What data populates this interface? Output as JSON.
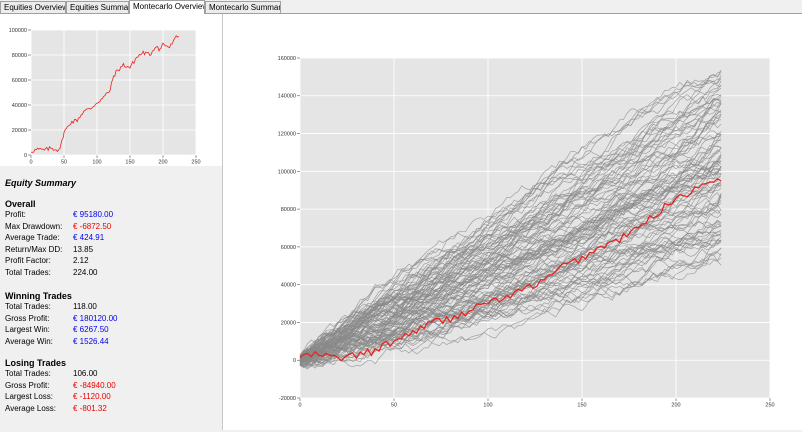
{
  "tabs": [
    {
      "label": "Equities Overview",
      "active": false
    },
    {
      "label": "Equities Summary",
      "active": false
    },
    {
      "label": "Montecarlo Overview",
      "active": true
    },
    {
      "label": "Montecarlo Summary",
      "active": false
    }
  ],
  "colors": {
    "equity_line": "#e8231f",
    "simulation_lines": "#8a8a8a",
    "plot_background": "#e5e5e5",
    "positive_value": "#0000ee",
    "negative_value": "#ee0000"
  },
  "summary": {
    "title": "Equity Summary",
    "overall": {
      "heading": "Overall",
      "rows": [
        {
          "label": "Profit:",
          "value": "€ 95180.00",
          "tone": "blue"
        },
        {
          "label": "Max Drawdown:",
          "value": "€ -6872.50",
          "tone": "red"
        },
        {
          "label": "Average Trade:",
          "value": "€ 424.91",
          "tone": "blue"
        },
        {
          "label": "Return/Max DD:",
          "value": "13.85",
          "tone": "black"
        },
        {
          "label": "Profit Factor:",
          "value": "2.12",
          "tone": "black"
        },
        {
          "label": "Total Trades:",
          "value": "224.00",
          "tone": "black"
        }
      ]
    },
    "winning": {
      "heading": "Winning Trades",
      "rows": [
        {
          "label": "Total Trades:",
          "value": "118.00",
          "tone": "black"
        },
        {
          "label": "Gross Profit:",
          "value": "€ 180120.00",
          "tone": "blue"
        },
        {
          "label": "Largest Win:",
          "value": "€ 6267.50",
          "tone": "blue"
        },
        {
          "label": "Average Win:",
          "value": "€ 1526.44",
          "tone": "blue"
        }
      ]
    },
    "losing": {
      "heading": "Losing Trades",
      "rows": [
        {
          "label": "Total Trades:",
          "value": "106.00",
          "tone": "black"
        },
        {
          "label": "Gross Profit:",
          "value": "€ -84940.00",
          "tone": "red"
        },
        {
          "label": "Largest Loss:",
          "value": "€ -1120.00",
          "tone": "red"
        },
        {
          "label": "Average Loss:",
          "value": "€ -801.32",
          "tone": "red"
        }
      ]
    }
  },
  "chart_data": [
    {
      "type": "line",
      "xlim": [
        0,
        250
      ],
      "ylim": [
        0,
        100000
      ],
      "x_ticks": [
        0,
        50,
        100,
        150,
        200,
        250
      ],
      "y_ticks": [
        0,
        20000,
        40000,
        60000,
        80000,
        100000
      ],
      "grid": true,
      "series": [
        {
          "points": [
            [
              0,
              3000
            ],
            [
              10,
              4500
            ],
            [
              20,
              3800
            ],
            [
              30,
              5500
            ],
            [
              40,
              4200
            ],
            [
              45,
              6500
            ],
            [
              50,
              18000
            ],
            [
              55,
              22000
            ],
            [
              60,
              26000
            ],
            [
              70,
              28000
            ],
            [
              80,
              35000
            ],
            [
              90,
              37000
            ],
            [
              100,
              42000
            ],
            [
              110,
              46000
            ],
            [
              120,
              52000
            ],
            [
              125,
              63000
            ],
            [
              130,
              67000
            ],
            [
              140,
              72000
            ],
            [
              150,
              70000
            ],
            [
              160,
              78000
            ],
            [
              170,
              82000
            ],
            [
              180,
              80000
            ],
            [
              190,
              88000
            ],
            [
              195,
              84000
            ],
            [
              200,
              89000
            ],
            [
              210,
              86000
            ],
            [
              220,
              94000
            ],
            [
              224,
              95000
            ]
          ]
        }
      ]
    },
    {
      "type": "line",
      "xlim": [
        0,
        250
      ],
      "ylim": [
        -20000,
        160000
      ],
      "x_ticks": [
        0,
        50,
        100,
        150,
        200,
        250
      ],
      "y_ticks": [
        -20000,
        0,
        20000,
        40000,
        60000,
        80000,
        100000,
        120000,
        140000,
        160000
      ],
      "grid": true,
      "simulation_count": 100,
      "simulations_end_range": [
        48000,
        154000
      ],
      "highlighted_series": {
        "points": [
          [
            0,
            2000
          ],
          [
            10,
            3000
          ],
          [
            20,
            1000
          ],
          [
            30,
            2500
          ],
          [
            40,
            5000
          ],
          [
            50,
            10000
          ],
          [
            60,
            15000
          ],
          [
            70,
            20000
          ],
          [
            80,
            22000
          ],
          [
            90,
            26000
          ],
          [
            100,
            31000
          ],
          [
            110,
            33000
          ],
          [
            120,
            38000
          ],
          [
            130,
            42000
          ],
          [
            140,
            50000
          ],
          [
            150,
            54000
          ],
          [
            160,
            60000
          ],
          [
            170,
            64000
          ],
          [
            180,
            70000
          ],
          [
            190,
            78000
          ],
          [
            200,
            86000
          ],
          [
            210,
            90000
          ],
          [
            220,
            96000
          ],
          [
            224,
            95000
          ]
        ]
      }
    }
  ]
}
